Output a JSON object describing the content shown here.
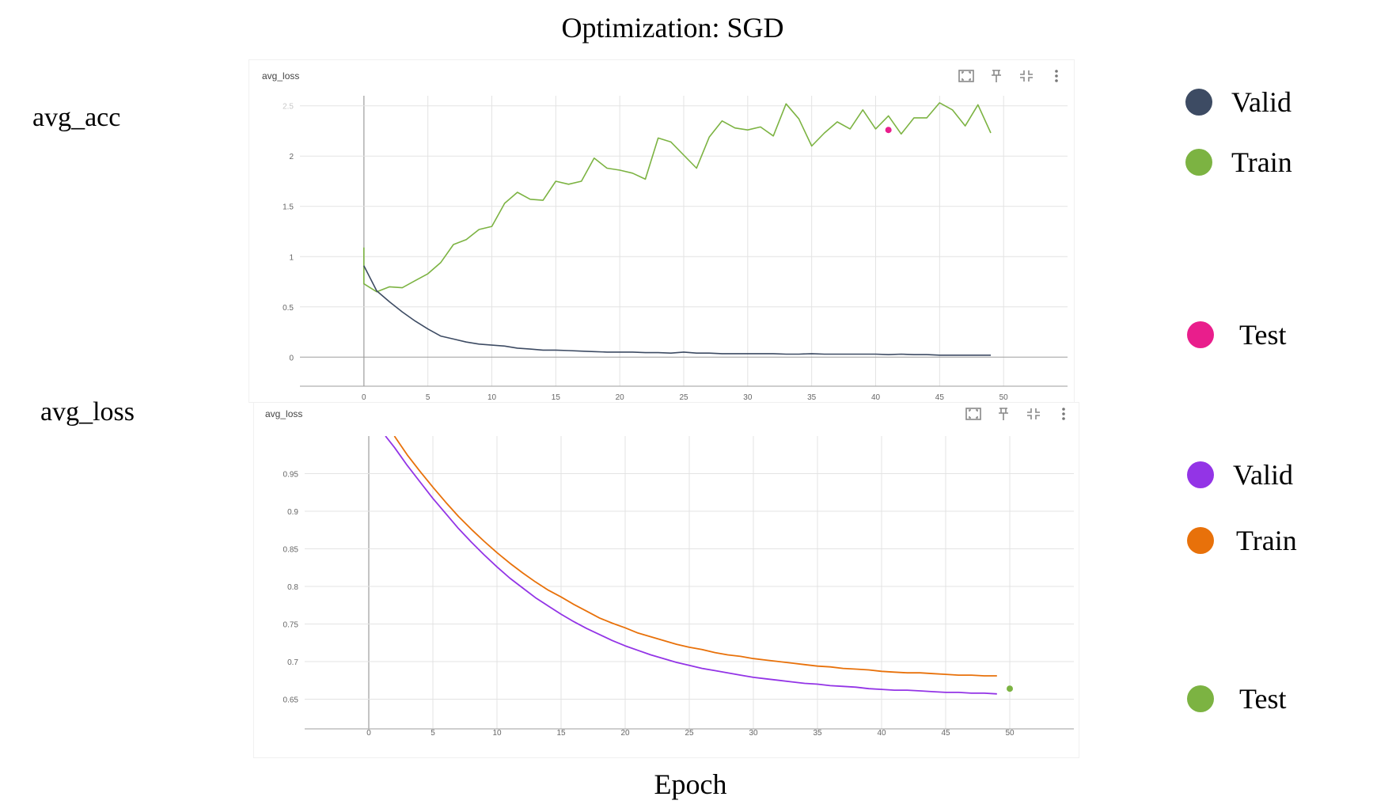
{
  "title": "Optimization: SGD",
  "row_labels": [
    "avg_acc",
    "avg_loss"
  ],
  "xaxis_caption": "Epoch",
  "legend_top": [
    {
      "label": "Valid",
      "color": "#3d4b63"
    },
    {
      "label": "Train",
      "color": "#7cb342"
    },
    {
      "label": "Test",
      "color": "#e91e8c"
    }
  ],
  "legend_bottom": [
    {
      "label": "Valid",
      "color": "#9334e6"
    },
    {
      "label": "Train",
      "color": "#e8710a"
    },
    {
      "label": "Test",
      "color": "#7cb342"
    }
  ],
  "toolbar_icons": [
    "fit-domain-icon",
    "pin-icon",
    "collapse-icon",
    "more-vert-icon"
  ],
  "chart_data": [
    {
      "type": "line",
      "title": "avg_loss",
      "xlim": [
        -5,
        55
      ],
      "ylim": [
        -0.1,
        2.6
      ],
      "x_ticks": [
        0,
        5,
        10,
        15,
        20,
        25,
        30,
        35,
        40,
        45,
        50
      ],
      "y_ticks": [
        0,
        0.5,
        1,
        1.5,
        2,
        2.5
      ],
      "y_tick_labels": [
        "0",
        "0.5",
        "1",
        "1.5",
        "2",
        "2.5"
      ],
      "grid": true,
      "series": [
        {
          "color": "#7cb342",
          "x": [
            0,
            0,
            1,
            2,
            3,
            4,
            5,
            6,
            7,
            8,
            9,
            10,
            11,
            12,
            13,
            14,
            15,
            16,
            17,
            18,
            19,
            20,
            21,
            22,
            23,
            24,
            25,
            26,
            27,
            28,
            29,
            30,
            31,
            32,
            33,
            34,
            35,
            36,
            37,
            38,
            39,
            40,
            41,
            42,
            43,
            44,
            45,
            46,
            47,
            48,
            49
          ],
          "y": [
            1.09,
            0.73,
            0.65,
            0.7,
            0.69,
            0.76,
            0.83,
            0.94,
            1.12,
            1.17,
            1.27,
            1.3,
            1.53,
            1.64,
            1.57,
            1.56,
            1.75,
            1.72,
            1.75,
            1.98,
            1.88,
            1.86,
            1.83,
            1.77,
            2.18,
            2.14,
            2.01,
            1.88,
            2.19,
            2.35,
            2.28,
            2.26,
            2.29,
            2.2,
            2.52,
            2.37,
            2.1,
            2.23,
            2.34,
            2.27,
            2.46,
            2.27,
            2.4,
            2.22,
            2.38,
            2.38,
            2.53,
            2.46,
            2.3,
            2.51,
            2.23
          ]
        },
        {
          "color": "#3d4b63",
          "x": [
            0,
            1,
            2,
            3,
            4,
            5,
            6,
            7,
            8,
            9,
            10,
            11,
            12,
            13,
            14,
            15,
            16,
            17,
            18,
            19,
            20,
            21,
            22,
            23,
            24,
            25,
            26,
            27,
            28,
            29,
            30,
            31,
            32,
            33,
            34,
            35,
            36,
            37,
            38,
            39,
            40,
            41,
            42,
            43,
            44,
            45,
            46,
            47,
            48,
            49
          ],
          "y": [
            0.91,
            0.66,
            0.55,
            0.45,
            0.36,
            0.28,
            0.21,
            0.18,
            0.15,
            0.13,
            0.12,
            0.11,
            0.09,
            0.08,
            0.07,
            0.07,
            0.065,
            0.06,
            0.055,
            0.05,
            0.05,
            0.05,
            0.045,
            0.045,
            0.04,
            0.05,
            0.04,
            0.04,
            0.035,
            0.035,
            0.035,
            0.035,
            0.035,
            0.03,
            0.03,
            0.035,
            0.03,
            0.03,
            0.03,
            0.03,
            0.03,
            0.025,
            0.03,
            0.025,
            0.025,
            0.02,
            0.02,
            0.02,
            0.02,
            0.02
          ]
        }
      ],
      "points": [
        {
          "color": "#e91e8c",
          "x": 41,
          "y": 2.26
        }
      ]
    },
    {
      "type": "line",
      "title": "avg_loss",
      "xlim": [
        -5,
        55
      ],
      "ylim": [
        0.6,
        1.0
      ],
      "x_ticks": [
        0,
        5,
        10,
        15,
        20,
        25,
        30,
        35,
        40,
        45,
        50
      ],
      "y_ticks": [
        0.65,
        0.7,
        0.75,
        0.8,
        0.85,
        0.9,
        0.95
      ],
      "y_tick_labels": [
        "0.65",
        "0.7",
        "0.75",
        "0.8",
        "0.85",
        "0.9",
        "0.95"
      ],
      "grid": true,
      "series": [
        {
          "color": "#e8710a",
          "x": [
            2,
            3,
            4,
            5,
            6,
            7,
            8,
            9,
            10,
            11,
            12,
            13,
            14,
            15,
            16,
            17,
            18,
            19,
            20,
            21,
            22,
            23,
            24,
            25,
            26,
            27,
            28,
            29,
            30,
            31,
            32,
            33,
            34,
            35,
            36,
            37,
            38,
            39,
            40,
            41,
            42,
            43,
            44,
            45,
            46,
            47,
            48,
            49
          ],
          "y": [
            1.0,
            0.975,
            0.953,
            0.932,
            0.912,
            0.893,
            0.876,
            0.86,
            0.845,
            0.831,
            0.818,
            0.806,
            0.795,
            0.786,
            0.776,
            0.767,
            0.758,
            0.751,
            0.745,
            0.738,
            0.733,
            0.728,
            0.723,
            0.719,
            0.716,
            0.712,
            0.709,
            0.707,
            0.704,
            0.702,
            0.7,
            0.698,
            0.696,
            0.694,
            0.693,
            0.691,
            0.69,
            0.689,
            0.687,
            0.686,
            0.685,
            0.685,
            0.684,
            0.683,
            0.682,
            0.682,
            0.681,
            0.681
          ]
        },
        {
          "color": "#9334e6",
          "x": [
            1.3,
            2,
            3,
            4,
            5,
            6,
            7,
            8,
            9,
            10,
            11,
            12,
            13,
            14,
            15,
            16,
            17,
            18,
            19,
            20,
            21,
            22,
            23,
            24,
            25,
            26,
            27,
            28,
            29,
            30,
            31,
            32,
            33,
            34,
            35,
            36,
            37,
            38,
            39,
            40,
            41,
            42,
            43,
            44,
            45,
            46,
            47,
            48,
            49
          ],
          "y": [
            1.0,
            0.985,
            0.961,
            0.939,
            0.917,
            0.897,
            0.877,
            0.859,
            0.842,
            0.826,
            0.811,
            0.798,
            0.785,
            0.774,
            0.763,
            0.753,
            0.744,
            0.736,
            0.728,
            0.721,
            0.715,
            0.709,
            0.704,
            0.699,
            0.695,
            0.691,
            0.688,
            0.685,
            0.682,
            0.679,
            0.677,
            0.675,
            0.673,
            0.671,
            0.67,
            0.668,
            0.667,
            0.666,
            0.664,
            0.663,
            0.662,
            0.662,
            0.661,
            0.66,
            0.659,
            0.659,
            0.658,
            0.658,
            0.657
          ]
        }
      ],
      "points": [
        {
          "color": "#7cb342",
          "x": 50,
          "y": 0.664
        }
      ]
    }
  ]
}
